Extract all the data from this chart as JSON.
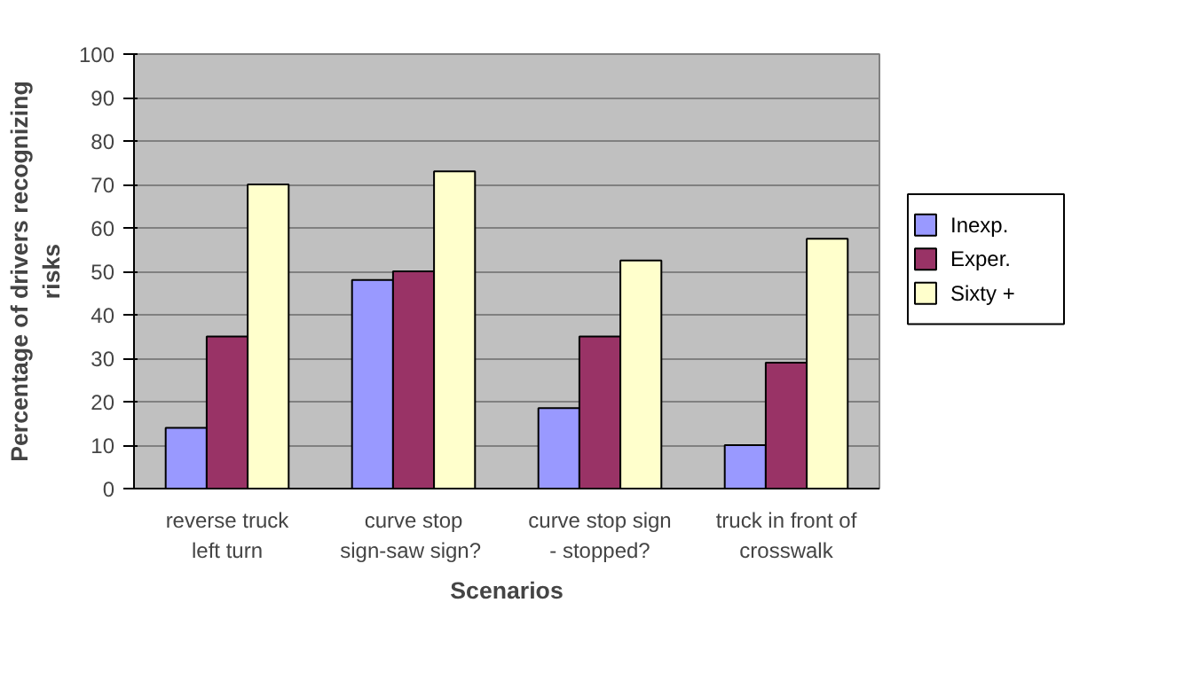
{
  "chart_data": {
    "type": "bar",
    "xlabel": "Scenarios",
    "ylabel": "Percentage of drivers recognizing\nrisks",
    "categories": [
      "reverse truck\nleft turn",
      "curve stop\nsign-saw  sign?",
      "curve stop sign\n- stopped?",
      "truck in front of\ncrosswalk"
    ],
    "series": [
      {
        "name": "Inexp.",
        "color": "#9999ff",
        "values": [
          14,
          48,
          18.5,
          10
        ]
      },
      {
        "name": "Exper.",
        "color": "#993366",
        "values": [
          35,
          50,
          35,
          29
        ]
      },
      {
        "name": "Sixty +",
        "color": "#ffffcc",
        "values": [
          70,
          73,
          52.5,
          57.5
        ]
      }
    ],
    "ylim": [
      0,
      100
    ],
    "yticks": [
      0,
      10,
      20,
      30,
      40,
      50,
      60,
      70,
      80,
      90,
      100
    ],
    "grid": "y",
    "legend": "right"
  }
}
